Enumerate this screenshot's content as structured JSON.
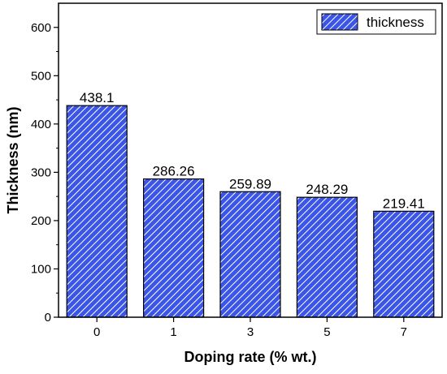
{
  "chart_data": {
    "type": "bar",
    "categories": [
      "0",
      "1",
      "3",
      "5",
      "7"
    ],
    "series": [
      {
        "name": "thickness",
        "values": [
          438.1,
          286.26,
          259.89,
          248.29,
          219.41
        ]
      }
    ],
    "data_labels": [
      "438.1",
      "286.26",
      "259.89",
      "248.29",
      "219.41"
    ],
    "title": "",
    "xlabel": "Doping rate (% wt.)",
    "ylabel": "Thickness (nm)",
    "ylim": [
      0,
      650
    ],
    "yticks": [
      0,
      100,
      200,
      300,
      400,
      500,
      600
    ],
    "legend_position": "top-right",
    "grid": false,
    "bar_color": "#3b55e6",
    "hatch_color": "#ffffff"
  }
}
